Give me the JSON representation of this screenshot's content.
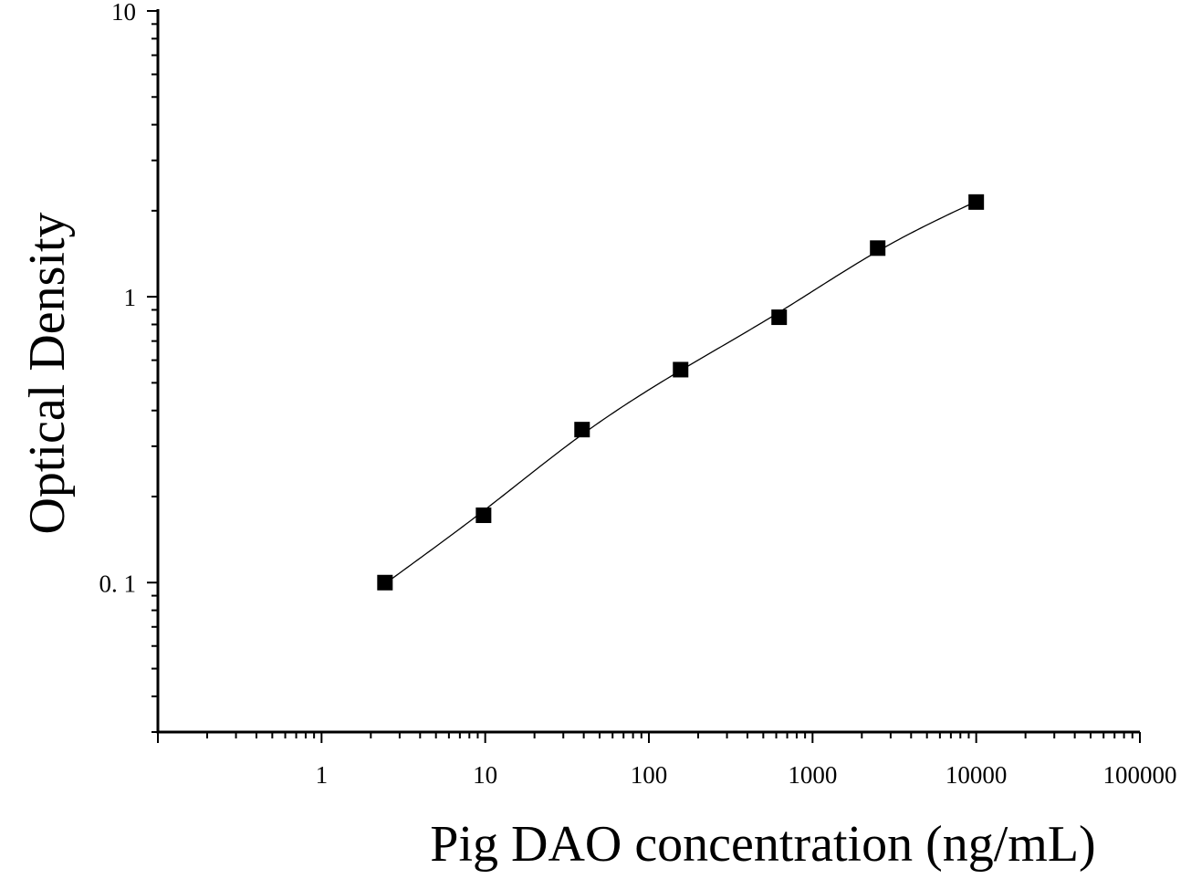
{
  "chart_data": {
    "type": "scatter",
    "title": "",
    "xlabel": "Pig DAO concentration (ng/mL)",
    "ylabel": "Optical Density",
    "x_scale": "log",
    "y_scale": "log",
    "xlim": [
      0.1,
      100000
    ],
    "ylim": [
      0.03,
      10
    ],
    "x_ticks": [
      {
        "value": 1,
        "label": "1"
      },
      {
        "value": 10,
        "label": "10"
      },
      {
        "value": 100,
        "label": "100"
      },
      {
        "value": 1000,
        "label": "1000"
      },
      {
        "value": 10000,
        "label": "10000"
      },
      {
        "value": 100000,
        "label": "100000"
      }
    ],
    "y_ticks": [
      {
        "value": 0.1,
        "label": "0. 1"
      },
      {
        "value": 1,
        "label": "1"
      },
      {
        "value": 10,
        "label": "10"
      }
    ],
    "grid": false,
    "legend": "none",
    "series": [
      {
        "marker": "square",
        "color": "#000000",
        "x": [
          2.44,
          9.77,
          39.06,
          156.25,
          625,
          2500,
          10000
        ],
        "y": [
          0.1,
          0.172,
          0.343,
          0.556,
          0.848,
          1.48,
          2.145
        ]
      }
    ],
    "fit_curve": {
      "color": "#000000",
      "x_range": [
        2.44,
        10000
      ]
    }
  }
}
